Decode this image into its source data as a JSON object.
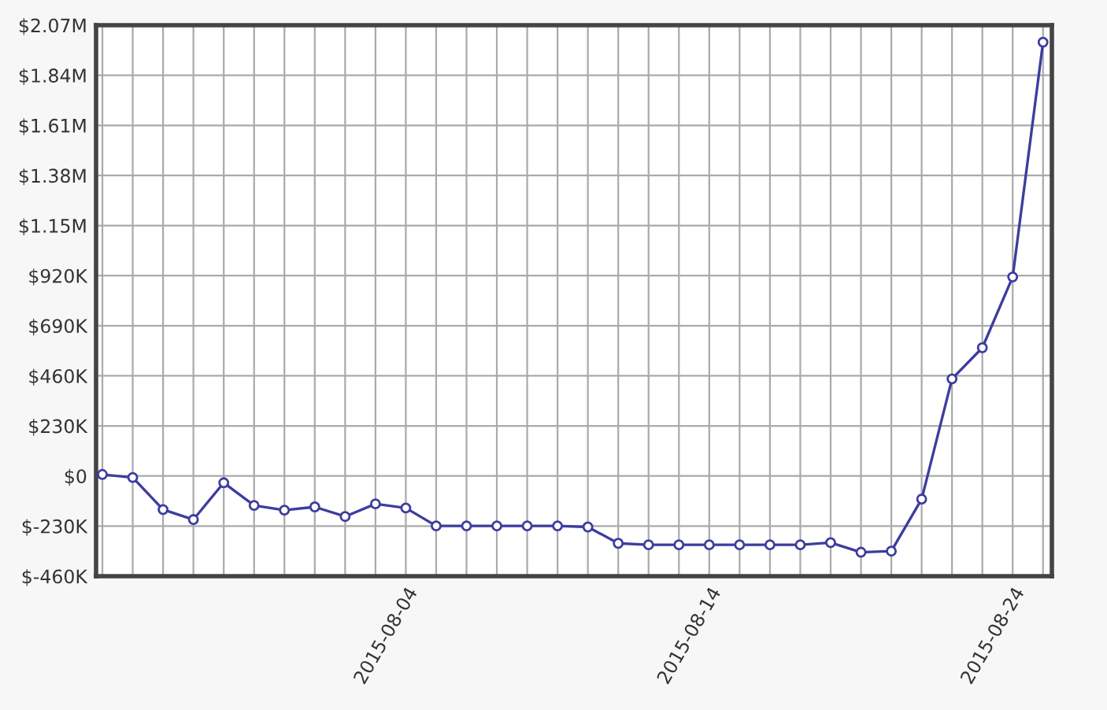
{
  "chart_data": {
    "type": "line",
    "x": [
      "2015-07-25",
      "2015-07-26",
      "2015-07-27",
      "2015-07-28",
      "2015-07-29",
      "2015-07-30",
      "2015-07-31",
      "2015-08-01",
      "2015-08-02",
      "2015-08-03",
      "2015-08-04",
      "2015-08-05",
      "2015-08-06",
      "2015-08-07",
      "2015-08-08",
      "2015-08-09",
      "2015-08-10",
      "2015-08-11",
      "2015-08-12",
      "2015-08-13",
      "2015-08-14",
      "2015-08-15",
      "2015-08-16",
      "2015-08-17",
      "2015-08-18",
      "2015-08-19",
      "2015-08-20",
      "2015-08-21",
      "2015-08-22",
      "2015-08-23",
      "2015-08-24",
      "2015-08-25"
    ],
    "series": [
      {
        "color": "#3d3d9e",
        "values": [
          7000,
          -7000,
          -154000,
          -200000,
          -31000,
          -135000,
          -157000,
          -142000,
          -186000,
          -128000,
          -147000,
          -229000,
          -229000,
          -229000,
          -229000,
          -229000,
          -234000,
          -309000,
          -316000,
          -316000,
          -316000,
          -316000,
          -316000,
          -316000,
          -306000,
          -350000,
          -345000,
          -106000,
          446000,
          589000,
          914000,
          1992000
        ]
      }
    ],
    "marker": "circle",
    "line_style": "solid",
    "grid": true,
    "xlim": [
      "2015-07-24T19:00",
      "2015-08-25T07:00"
    ],
    "xticks": [
      {
        "value": "2015-07-25",
        "label": null
      },
      {
        "value": "2015-07-26",
        "label": null
      },
      {
        "value": "2015-07-27",
        "label": null
      },
      {
        "value": "2015-07-28",
        "label": null
      },
      {
        "value": "2015-07-29",
        "label": null
      },
      {
        "value": "2015-07-30",
        "label": null
      },
      {
        "value": "2015-07-31",
        "label": null
      },
      {
        "value": "2015-08-01",
        "label": null
      },
      {
        "value": "2015-08-02",
        "label": null
      },
      {
        "value": "2015-08-03",
        "label": null
      },
      {
        "value": "2015-08-04",
        "label": "2015-08-04"
      },
      {
        "value": "2015-08-05",
        "label": null
      },
      {
        "value": "2015-08-06",
        "label": null
      },
      {
        "value": "2015-08-07",
        "label": null
      },
      {
        "value": "2015-08-08",
        "label": null
      },
      {
        "value": "2015-08-09",
        "label": null
      },
      {
        "value": "2015-08-10",
        "label": null
      },
      {
        "value": "2015-08-11",
        "label": null
      },
      {
        "value": "2015-08-12",
        "label": null
      },
      {
        "value": "2015-08-13",
        "label": null
      },
      {
        "value": "2015-08-14",
        "label": "2015-08-14"
      },
      {
        "value": "2015-08-15",
        "label": null
      },
      {
        "value": "2015-08-16",
        "label": null
      },
      {
        "value": "2015-08-17",
        "label": null
      },
      {
        "value": "2015-08-18",
        "label": null
      },
      {
        "value": "2015-08-19",
        "label": null
      },
      {
        "value": "2015-08-20",
        "label": null
      },
      {
        "value": "2015-08-21",
        "label": null
      },
      {
        "value": "2015-08-22",
        "label": null
      },
      {
        "value": "2015-08-23",
        "label": null
      },
      {
        "value": "2015-08-24",
        "label": "2015-08-24"
      },
      {
        "value": "2015-08-25",
        "label": null
      }
    ],
    "ylim": [
      -460000,
      2070000
    ],
    "yticks": [
      {
        "value": -460000,
        "label": "$-460K"
      },
      {
        "value": -230000,
        "label": "$-230K"
      },
      {
        "value": 0,
        "label": "$0"
      },
      {
        "value": 230000,
        "label": "$230K"
      },
      {
        "value": 460000,
        "label": "$460K"
      },
      {
        "value": 690000,
        "label": "$690K"
      },
      {
        "value": 920000,
        "label": "$920K"
      },
      {
        "value": 1150000,
        "label": "$1.15M"
      },
      {
        "value": 1380000,
        "label": "$1.38M"
      },
      {
        "value": 1610000,
        "label": "$1.61M"
      },
      {
        "value": 1840000,
        "label": "$1.84M"
      },
      {
        "value": 2070000,
        "label": "$2.07M"
      }
    ]
  }
}
